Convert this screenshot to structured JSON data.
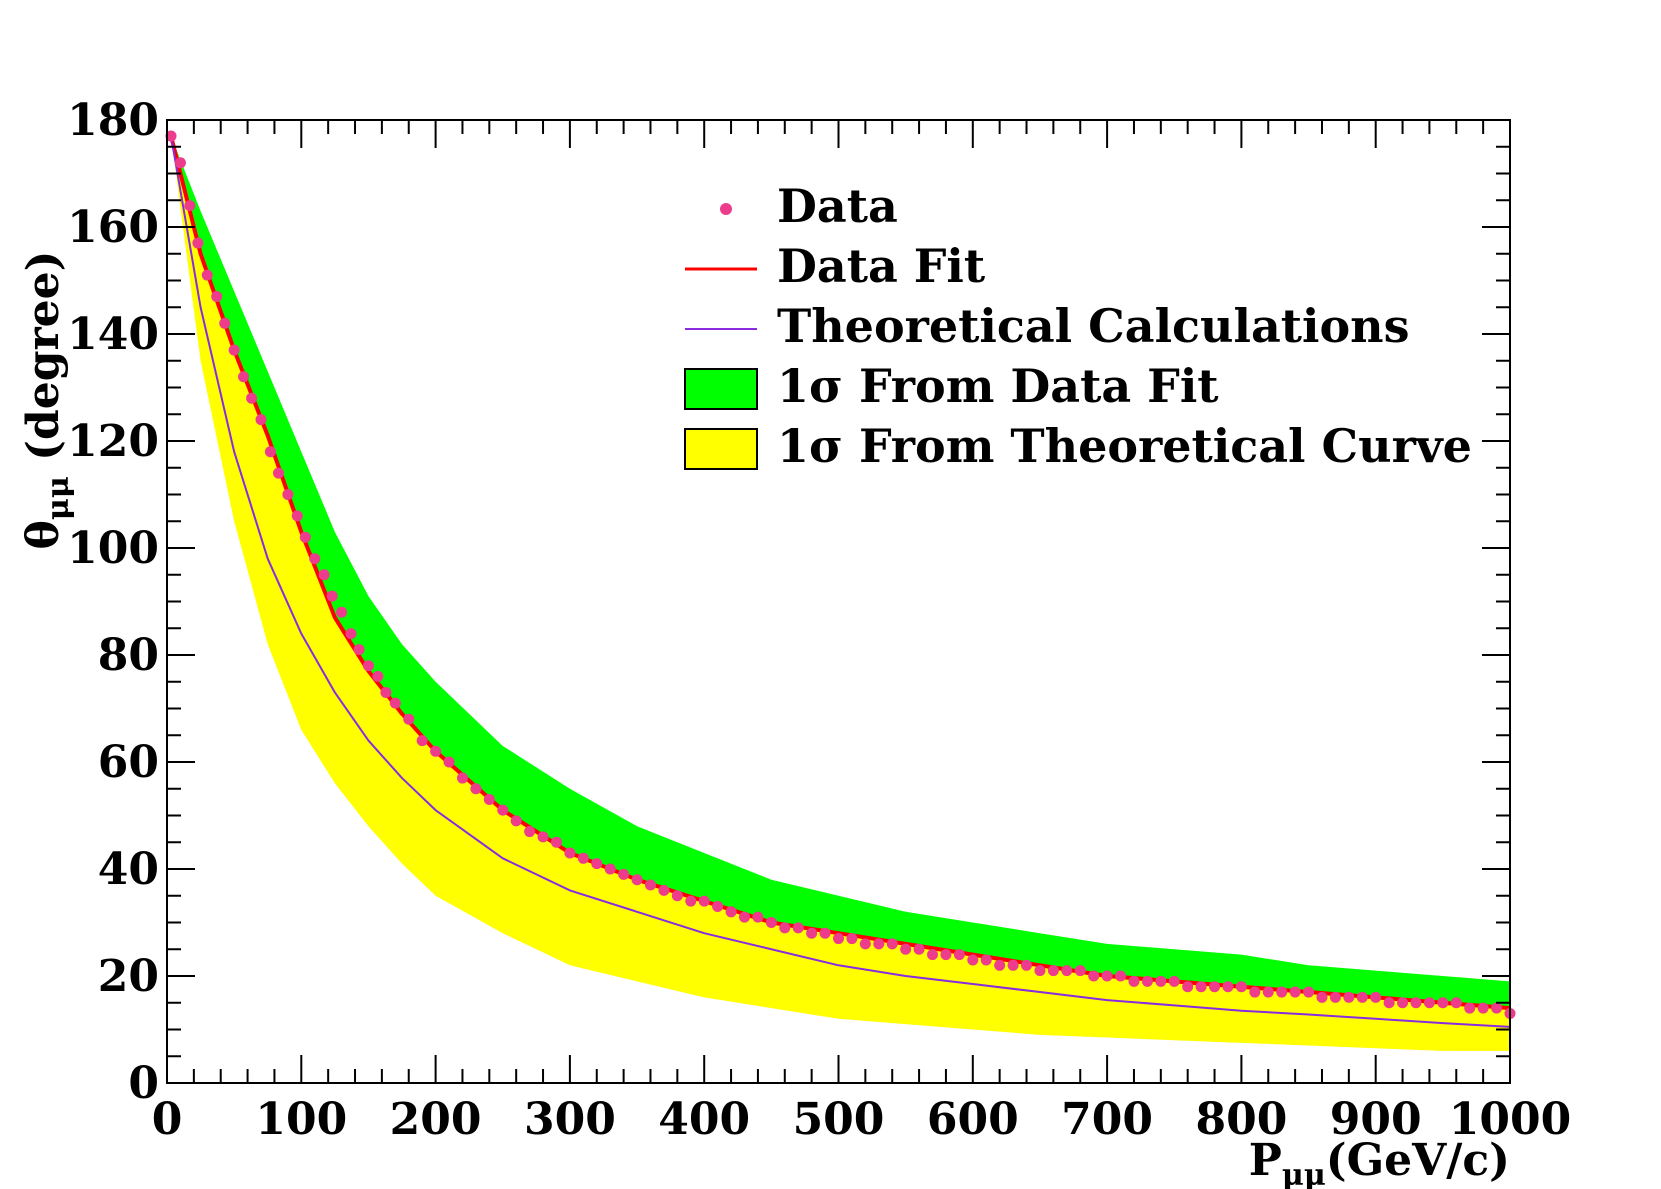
{
  "chart_data": {
    "type": "scatter",
    "title": "",
    "xlabel": {
      "main": "P",
      "sub": "μμ",
      "unit": "(GeV/c)"
    },
    "ylabel": {
      "main": "θ",
      "sub": "μμ",
      "unit": " (degree)"
    },
    "xlim": [
      0,
      1000
    ],
    "ylim": [
      0,
      180
    ],
    "x_ticks": [
      0,
      100,
      200,
      300,
      400,
      500,
      600,
      700,
      800,
      900,
      1000
    ],
    "y_ticks": [
      0,
      20,
      40,
      60,
      80,
      100,
      120,
      140,
      160,
      180
    ],
    "x_tick_labels": [
      "0",
      "100",
      "200",
      "300",
      "400",
      "500",
      "600",
      "700",
      "800",
      "900",
      "1000"
    ],
    "y_tick_labels": [
      "0",
      "20",
      "40",
      "60",
      "80",
      "100",
      "120",
      "140",
      "160",
      "180"
    ],
    "legend_position": "top-right",
    "colors": {
      "data": "#ee3c8c",
      "data_fit": "#ff0000",
      "theory": "#8a2be2",
      "band_fit": "#00ff00",
      "band_theory": "#ffff00"
    },
    "series": [
      {
        "name": "Data",
        "label": "Data",
        "kind": "points",
        "x": [
          3,
          10,
          17,
          23,
          30,
          37,
          43,
          50,
          57,
          63,
          70,
          77,
          83,
          90,
          97,
          103,
          110,
          117,
          123,
          130,
          137,
          143,
          150,
          157,
          163,
          170,
          180,
          190,
          200,
          210,
          220,
          230,
          240,
          250,
          260,
          270,
          280,
          290,
          300,
          310,
          320,
          330,
          340,
          350,
          360,
          370,
          380,
          390,
          400,
          410,
          420,
          430,
          440,
          450,
          460,
          470,
          480,
          490,
          500,
          510,
          520,
          530,
          540,
          550,
          560,
          570,
          580,
          590,
          600,
          610,
          620,
          630,
          640,
          650,
          660,
          670,
          680,
          690,
          700,
          710,
          720,
          730,
          740,
          750,
          760,
          770,
          780,
          790,
          800,
          810,
          820,
          830,
          840,
          850,
          860,
          870,
          880,
          890,
          900,
          910,
          920,
          930,
          940,
          950,
          960,
          970,
          980,
          990,
          1000
        ],
        "y": [
          177,
          172,
          164,
          157,
          151,
          147,
          142,
          137,
          132,
          128,
          124,
          118,
          114,
          110,
          106,
          102,
          98,
          95,
          91,
          88,
          84,
          81,
          78,
          76,
          73,
          71,
          68,
          64,
          62,
          60,
          57,
          55,
          53,
          51,
          49,
          47,
          46,
          45,
          43,
          42,
          41,
          40,
          39,
          38,
          37,
          36,
          35,
          34,
          34,
          33,
          32,
          31,
          31,
          30,
          29,
          29,
          28,
          28,
          27,
          27,
          26,
          26,
          26,
          25,
          25,
          24,
          24,
          24,
          23,
          23,
          22,
          22,
          22,
          21,
          21,
          21,
          21,
          20,
          20,
          20,
          19,
          19,
          19,
          19,
          18,
          18,
          18,
          18,
          18,
          17,
          17,
          17,
          17,
          17,
          16,
          16,
          16,
          16,
          16,
          15,
          15,
          15,
          15,
          15,
          15,
          14,
          14,
          14,
          13
        ]
      },
      {
        "name": "Data Fit",
        "label": "Data Fit",
        "kind": "line",
        "x": [
          3,
          25,
          50,
          75,
          100,
          125,
          150,
          175,
          200,
          250,
          300,
          350,
          400,
          450,
          500,
          550,
          600,
          650,
          700,
          750,
          800,
          850,
          900,
          950,
          1000
        ],
        "y": [
          177,
          155,
          137,
          121,
          103,
          87,
          77,
          69,
          62,
          51,
          43,
          38,
          34,
          30,
          28,
          26,
          24,
          22,
          20,
          19,
          18,
          17,
          16,
          15,
          14
        ]
      },
      {
        "name": "Theoretical Calculations",
        "label": "Theoretical Calculations",
        "kind": "line",
        "x": [
          3,
          25,
          50,
          75,
          100,
          125,
          150,
          175,
          200,
          250,
          300,
          350,
          400,
          450,
          500,
          550,
          600,
          650,
          700,
          750,
          800,
          850,
          900,
          950,
          1000
        ],
        "y": [
          177,
          145,
          118,
          98,
          84,
          73,
          64,
          57,
          51,
          42,
          36,
          32,
          28,
          25,
          22,
          20,
          18.5,
          17,
          15.5,
          14.5,
          13.5,
          12.8,
          12,
          11.2,
          10.5
        ]
      },
      {
        "name": "1σ From Data Fit",
        "label": "1σ From Data Fit",
        "kind": "band",
        "x": [
          3,
          25,
          50,
          75,
          100,
          125,
          150,
          175,
          200,
          250,
          300,
          350,
          400,
          450,
          500,
          550,
          600,
          650,
          700,
          750,
          800,
          850,
          900,
          950,
          1000
        ],
        "upper": [
          177,
          163,
          148,
          133,
          118,
          103,
          91,
          82,
          75,
          63,
          55,
          48,
          43,
          38,
          35,
          32,
          30,
          28,
          26,
          25,
          24,
          22,
          21,
          20,
          19
        ],
        "lower": [
          177,
          155,
          137,
          121,
          103,
          87,
          77,
          69,
          62,
          51,
          43,
          38,
          34,
          30,
          28,
          26,
          24,
          22,
          20,
          19,
          18,
          17,
          16,
          15,
          14
        ]
      },
      {
        "name": "1σ From Theoretical Curve",
        "label": "1σ From Theoretical Curve",
        "kind": "band",
        "x": [
          3,
          25,
          50,
          75,
          100,
          125,
          150,
          175,
          200,
          250,
          300,
          350,
          400,
          450,
          500,
          550,
          600,
          650,
          700,
          750,
          800,
          850,
          900,
          950,
          1000
        ],
        "upper": [
          177,
          155,
          137,
          121,
          103,
          87,
          77,
          69,
          62,
          51,
          43,
          38,
          34,
          30,
          28,
          26,
          24,
          22,
          20,
          19,
          18,
          17,
          16,
          15,
          14
        ],
        "lower": [
          177,
          135,
          105,
          82,
          66,
          56,
          48,
          41,
          35,
          28,
          22,
          19,
          16,
          14,
          12,
          11,
          10,
          9,
          8.5,
          8,
          7.5,
          7,
          6.5,
          6,
          6
        ]
      }
    ]
  }
}
